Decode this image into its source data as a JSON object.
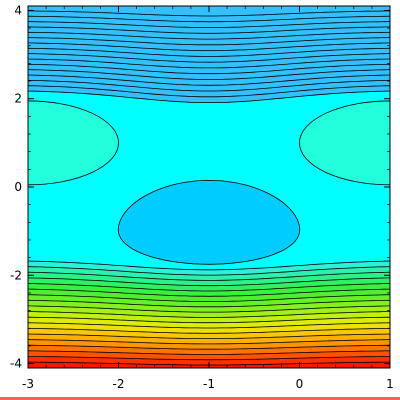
{
  "chart_data": {
    "type": "contour",
    "title": "",
    "xlabel": "",
    "ylabel": "",
    "xlim": [
      -3,
      1
    ],
    "ylim": [
      -4.1,
      4.1
    ],
    "x_ticks": [
      -3,
      -2,
      -1,
      0,
      1
    ],
    "y_ticks": [
      -4,
      -2,
      0,
      2,
      4
    ],
    "x_tick_labels": [
      "-3",
      "-2",
      "-1",
      "0",
      "1"
    ],
    "y_tick_labels": [
      "-4",
      "-2",
      "0",
      "2",
      "4"
    ],
    "grid": false,
    "legend": "none",
    "color_scheme": "hue rainbow (red-orange low, green, cyan, blue, magenta high)",
    "features": {
      "saddle_plateau_region_y": [
        -1.7,
        2.15
      ],
      "inner_minimum_center": [
        -1.0,
        -0.9
      ],
      "side_maxima_y": 1.0,
      "side_maxima_x": [
        -3.0,
        1.0
      ],
      "upper_band_y": [
        2.15,
        4.1
      ],
      "lower_band_y": [
        -4.1,
        -1.7
      ]
    },
    "upper_band_colors": [
      "#33c0ff",
      "#22b0ff",
      "#1d9cff",
      "#1a86ff",
      "#1a6cff",
      "#1a50ff",
      "#1a30ff",
      "#2a18ff",
      "#4a18ff",
      "#6a18ff",
      "#8a18ff",
      "#aa18f0",
      "#c818e0",
      "#e018c8",
      "#ec1aa8",
      "#f21c8a"
    ],
    "lower_band_colors": [
      "#2ef0d8",
      "#2cf0b0",
      "#2cf08a",
      "#30f062",
      "#38f040",
      "#4cf030",
      "#66f028",
      "#84f020",
      "#a2f018",
      "#c2f010",
      "#dcec0c",
      "#f0e008",
      "#f8c806",
      "#ffb004",
      "#ff9402",
      "#ff7400",
      "#ff5200",
      "#ff3000",
      "#f81800"
    ],
    "plateau_color": "#00ffff",
    "inner_region_color": "#00ccff",
    "side_region_color": "#22ffdd",
    "frame_bottom_color": "#ff6060"
  }
}
